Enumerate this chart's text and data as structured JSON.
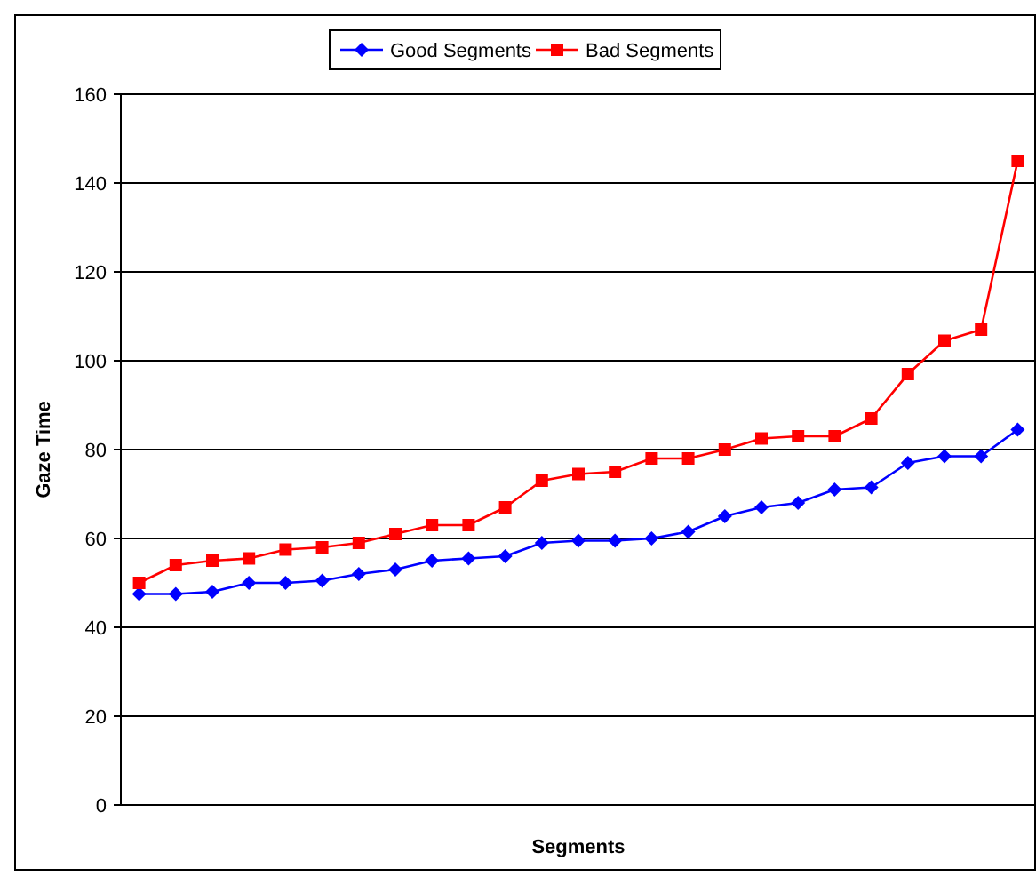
{
  "chart_data": {
    "type": "line",
    "xlabel": "Segments",
    "ylabel": "Gaze Time",
    "categories": [
      null,
      null,
      null,
      null,
      null,
      null,
      null,
      null,
      null,
      null,
      null,
      null,
      null,
      null,
      null,
      null,
      null,
      null,
      null,
      null,
      null,
      null,
      null,
      null,
      null
    ],
    "series": [
      {
        "name": "Good Segments",
        "color": "#0000ff",
        "marker": "diamond",
        "values": [
          47.5,
          47.5,
          48,
          50,
          50,
          50.5,
          52,
          53,
          55,
          55.5,
          56,
          59,
          59.5,
          59.5,
          60,
          61.5,
          65,
          67,
          68,
          71,
          71.5,
          77,
          78.5,
          78.5,
          84.5
        ]
      },
      {
        "name": "Bad Segments",
        "color": "#ff0000",
        "marker": "square",
        "values": [
          50,
          54,
          55,
          55.5,
          57.5,
          58,
          59,
          61,
          63,
          63,
          67,
          73,
          74.5,
          75,
          78,
          78,
          80,
          82.5,
          83,
          83,
          87,
          97,
          104.5,
          107,
          145
        ]
      }
    ],
    "ylim": [
      0,
      160
    ],
    "yticks": [
      0,
      20,
      40,
      60,
      80,
      100,
      120,
      140,
      160
    ],
    "grid": "y",
    "legend": "top"
  }
}
